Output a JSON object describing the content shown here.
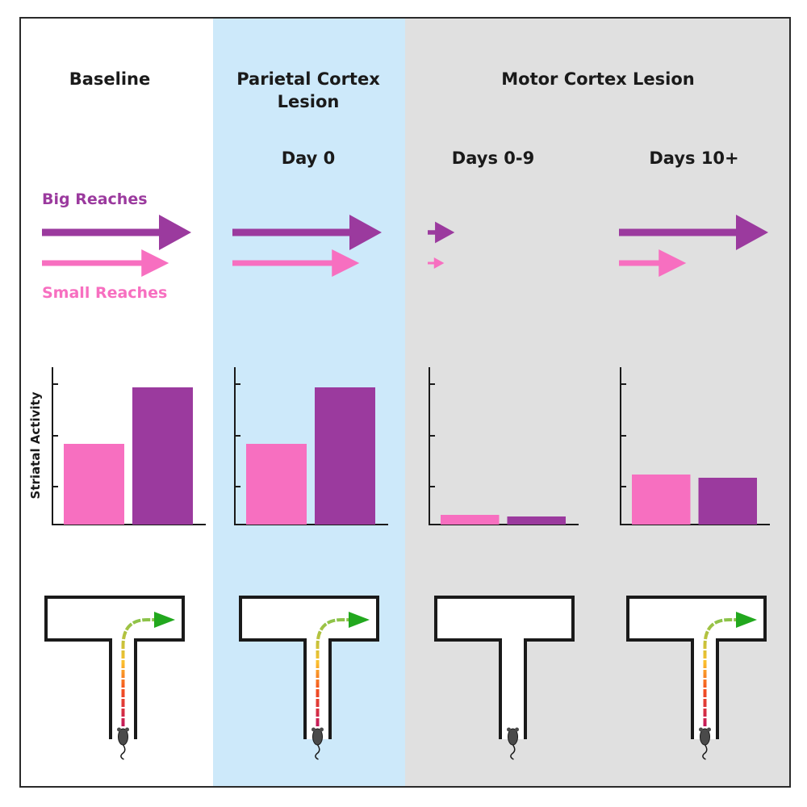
{
  "headers": {
    "baseline": "Baseline",
    "parietal_line1": "Parietal Cortex",
    "parietal_line2": "Lesion",
    "motor": "Motor Cortex Lesion"
  },
  "phases": [
    "Day 0",
    "Days 0-9",
    "Days 10+"
  ],
  "legend": {
    "big": "Big Reaches",
    "small": "Small Reaches"
  },
  "y_axis_label": "Striatal Activity",
  "colors": {
    "big": "#9b3a9e",
    "small": "#f76fc0",
    "parietal_bg": "#cde9fa",
    "motor_bg": "#e0e0e0",
    "arrow_green": "#22a81e"
  },
  "chart_data": [
    {
      "type": "bar",
      "panel": "Baseline",
      "categories": [
        "Small Reaches",
        "Big Reaches"
      ],
      "values": [
        0.5,
        0.85
      ],
      "ylim": [
        0,
        1
      ]
    },
    {
      "type": "bar",
      "panel": "Day 0",
      "categories": [
        "Small Reaches",
        "Big Reaches"
      ],
      "values": [
        0.5,
        0.85
      ],
      "ylim": [
        0,
        1
      ]
    },
    {
      "type": "bar",
      "panel": "Days 0-9",
      "categories": [
        "Small Reaches",
        "Big Reaches"
      ],
      "values": [
        0.06,
        0.05
      ],
      "ylim": [
        0,
        1
      ]
    },
    {
      "type": "bar",
      "panel": "Days 10+",
      "categories": [
        "Small Reaches",
        "Big Reaches"
      ],
      "values": [
        0.31,
        0.29
      ],
      "ylim": [
        0,
        1
      ]
    }
  ],
  "reach_arrows": [
    {
      "panel": "Baseline",
      "big": 1.0,
      "small": 0.85
    },
    {
      "panel": "Day 0",
      "big": 1.0,
      "small": 0.85
    },
    {
      "panel": "Days 0-9",
      "big": 0.18,
      "small": 0.11
    },
    {
      "panel": "Days 10+",
      "big": 1.0,
      "small": 0.45
    }
  ],
  "maze_paths": [
    {
      "panel": "Baseline",
      "completed": true
    },
    {
      "panel": "Day 0",
      "completed": true
    },
    {
      "panel": "Days 0-9",
      "completed": false
    },
    {
      "panel": "Days 10+",
      "completed": true
    }
  ]
}
